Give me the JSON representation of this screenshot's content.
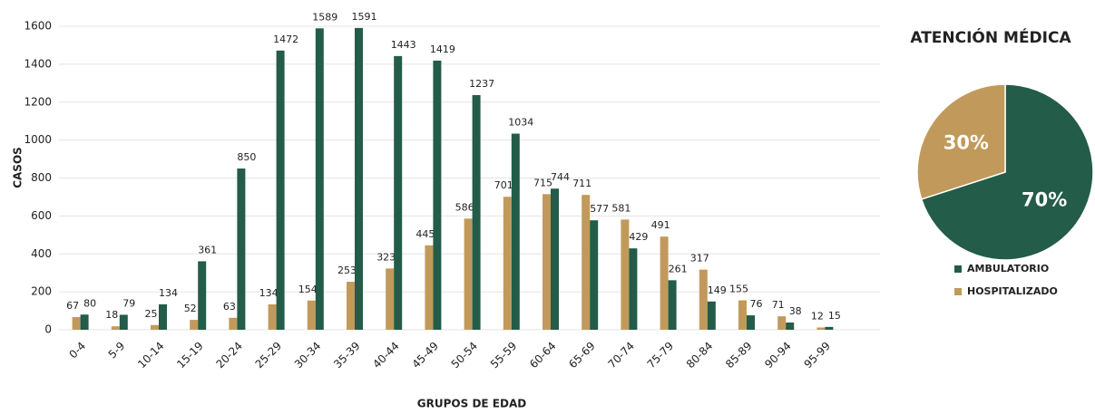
{
  "chart_data": [
    {
      "type": "bar",
      "xlabel": "GRUPOS DE EDAD",
      "ylabel": "CASOS",
      "categories": [
        "0-4",
        "5-9",
        "10-14",
        "15-19",
        "20-24",
        "25-29",
        "30-34",
        "35-39",
        "40-44",
        "45-49",
        "50-54",
        "55-59",
        "60-64",
        "65-69",
        "70-74",
        "75-79",
        "80-84",
        "85-89",
        "90-94",
        "95-99"
      ],
      "series": [
        {
          "color": "#c19a5b",
          "values": [
            67,
            18,
            25,
            52,
            63,
            134,
            154,
            253,
            323,
            445,
            586,
            701,
            715,
            711,
            581,
            491,
            317,
            155,
            71,
            12
          ]
        },
        {
          "color": "#235c48",
          "values": [
            80,
            79,
            134,
            361,
            850,
            1472,
            1589,
            1591,
            1443,
            1419,
            1237,
            1034,
            744,
            577,
            429,
            261,
            149,
            76,
            38,
            15
          ]
        }
      ],
      "ylim": [
        0,
        1600
      ],
      "yticks": [
        0,
        200,
        400,
        600,
        800,
        1000,
        1200,
        1400,
        1600
      ],
      "grid": true
    },
    {
      "type": "pie",
      "title": "ATENCIÓN MÉDICA",
      "categories": [
        "AMBULATORIO",
        "HOSPITALIZADO"
      ],
      "values": [
        70,
        30
      ],
      "value_labels": [
        "70%",
        "30%"
      ],
      "colors": [
        "#235c48",
        "#c19a5b"
      ]
    }
  ]
}
